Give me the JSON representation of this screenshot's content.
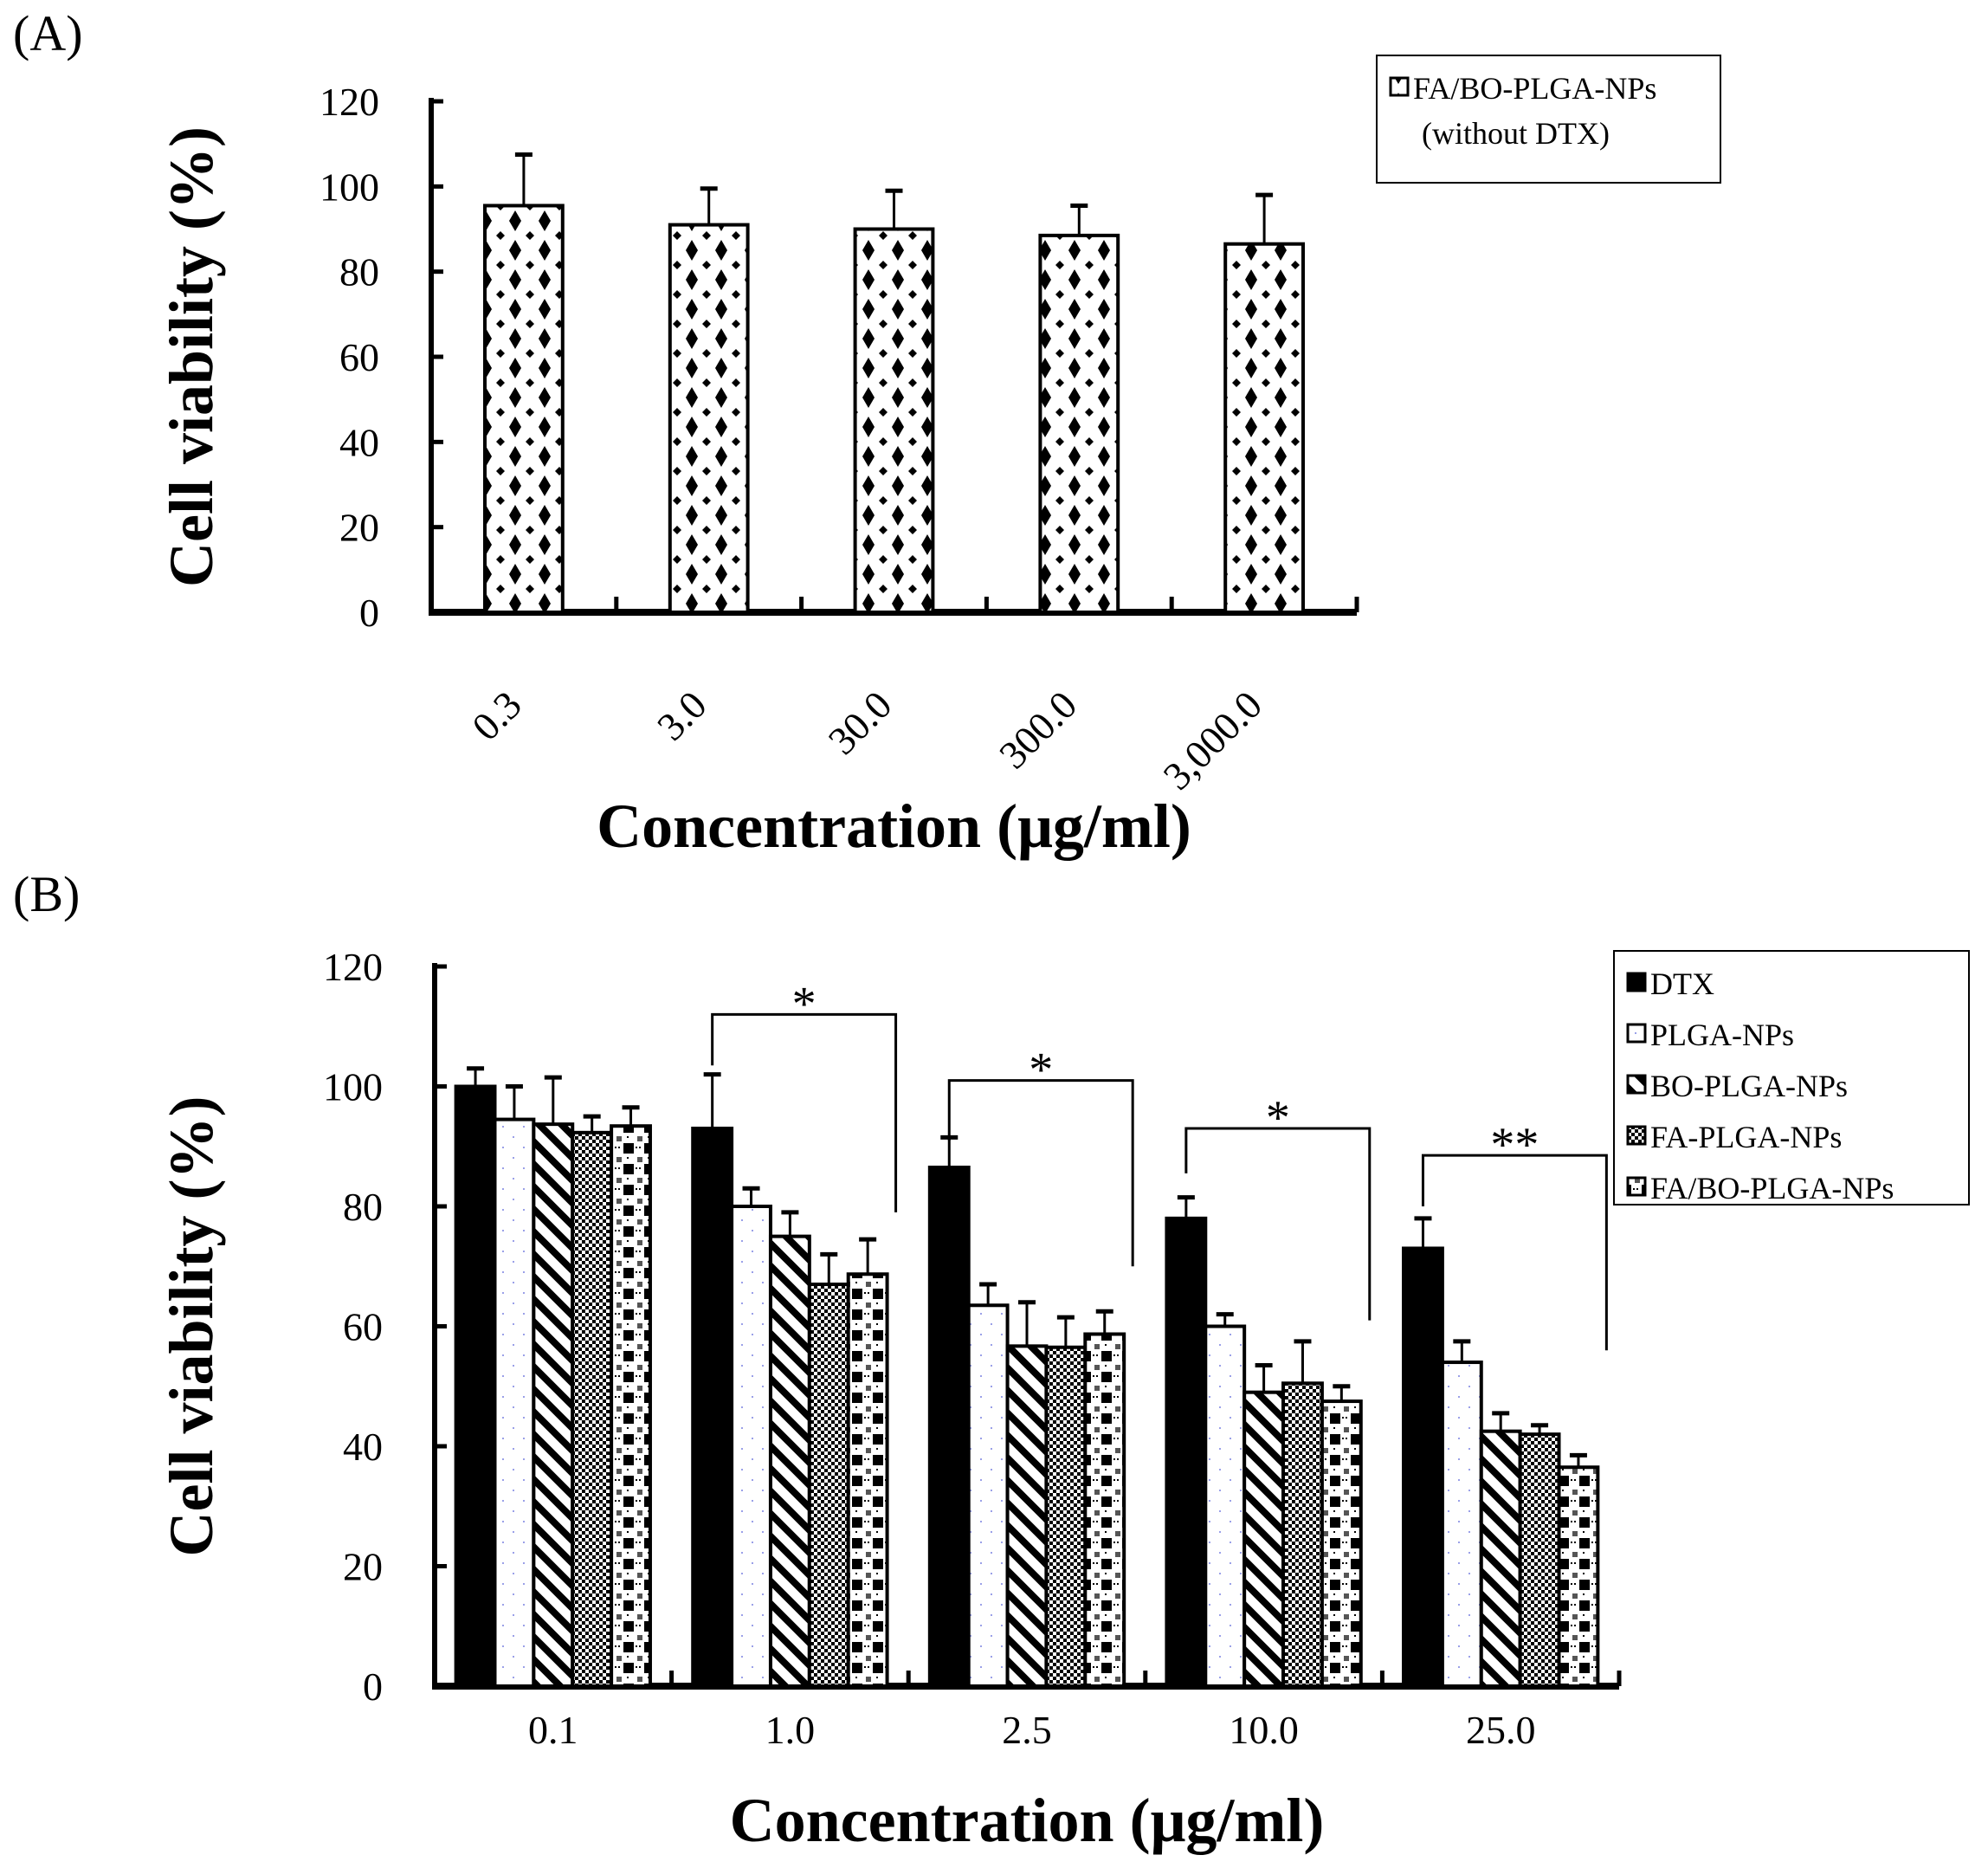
{
  "chart_data": [
    {
      "panel_label": "(A)",
      "type": "bar",
      "xlabel": "Concentration (μg/ml)",
      "ylabel": "Cell viability (%)",
      "ylim": [
        0,
        120
      ],
      "yticks": [
        "0",
        "20",
        "40",
        "60",
        "80",
        "100",
        "120"
      ],
      "categories": [
        "0.3",
        "3.0",
        "30.0",
        "300.0",
        "3,000.0"
      ],
      "legend_position": "top-right",
      "series": [
        {
          "name": "FA/BO-PLGA-NPs",
          "name_line2": "(without DTX)",
          "pattern": "diamonds",
          "values": [
            95.5,
            91,
            90,
            88.5,
            86.5
          ],
          "error_upper": [
            107.5,
            99.5,
            99,
            95.5,
            98
          ]
        }
      ]
    },
    {
      "panel_label": "(B)",
      "type": "bar",
      "xlabel": "Concentration (μg/ml)",
      "ylabel": "Cell viability (%)",
      "ylim": [
        0,
        120
      ],
      "yticks": [
        "0",
        "20",
        "40",
        "60",
        "80",
        "100",
        "120"
      ],
      "categories": [
        "0.1",
        "1.0",
        "2.5",
        "10.0",
        "25.0"
      ],
      "legend_position": "top-right",
      "series": [
        {
          "name": "DTX",
          "pattern": "solid",
          "values": [
            100,
            93,
            86.5,
            78,
            73
          ],
          "error_upper": [
            103,
            102,
            91.5,
            81.5,
            78
          ]
        },
        {
          "name": "PLGA-NPs",
          "pattern": "dots",
          "values": [
            94.5,
            80,
            63.5,
            60,
            54
          ],
          "error_upper": [
            100,
            83,
            67,
            62,
            57.5
          ]
        },
        {
          "name": "BO-PLGA-NPs",
          "pattern": "diagonal",
          "values": [
            93.7,
            75,
            56.7,
            49,
            42.5
          ],
          "error_upper": [
            101.5,
            79,
            64,
            53.5,
            45.5
          ]
        },
        {
          "name": "FA-PLGA-NPs",
          "pattern": "checker",
          "values": [
            92.3,
            67,
            56.5,
            50.5,
            42
          ],
          "error_upper": [
            95,
            72,
            61.5,
            57.5,
            43.5
          ]
        },
        {
          "name": "FA/BO-PLGA-NPs",
          "pattern": "weave",
          "values": [
            93.4,
            68.7,
            58.7,
            47.5,
            36.5
          ],
          "error_upper": [
            96.5,
            74.5,
            62.5,
            50,
            38.5
          ]
        }
      ],
      "significance": [
        {
          "category": "1.0",
          "label": "*",
          "top": 112,
          "left_end": 103.5,
          "right_end": 79
        },
        {
          "category": "2.5",
          "label": "*",
          "top": 101,
          "left_end": 91,
          "right_end": 70
        },
        {
          "category": "10.0",
          "label": "*",
          "top": 93,
          "left_end": 85.5,
          "right_end": 61
        },
        {
          "category": "25.0",
          "label": "**",
          "top": 88.5,
          "left_end": 80,
          "right_end": 56
        }
      ]
    }
  ]
}
